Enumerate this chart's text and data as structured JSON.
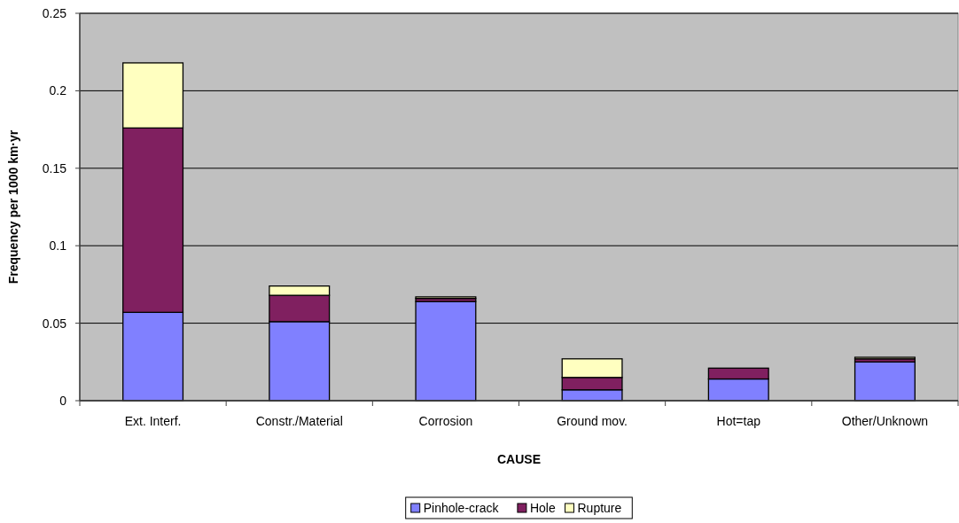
{
  "chart_data": {
    "type": "bar",
    "stacked": true,
    "xlabel": "CAUSE",
    "ylabel": "Frequency per 1000 km·yr",
    "categories": [
      "Ext. Interf.",
      "Constr./Material",
      "Corrosion",
      "Ground mov.",
      "Hot=tap",
      "Other/Unknown"
    ],
    "series": [
      {
        "name": "Pinhole-crack",
        "color": "#8080ff",
        "values": [
          0.057,
          0.051,
          0.064,
          0.007,
          0.014,
          0.025
        ]
      },
      {
        "name": "Hole",
        "color": "#802060",
        "values": [
          0.119,
          0.017,
          0.002,
          0.008,
          0.007,
          0.002
        ]
      },
      {
        "name": "Rupture",
        "color": "#ffffc0",
        "values": [
          0.042,
          0.006,
          0.001,
          0.012,
          null,
          0.001
        ]
      }
    ],
    "ylim": [
      0,
      0.25
    ],
    "yticks": [
      0,
      0.05,
      0.1,
      0.15,
      0.2,
      0.25
    ],
    "grid": "y",
    "legend": "bottom"
  }
}
